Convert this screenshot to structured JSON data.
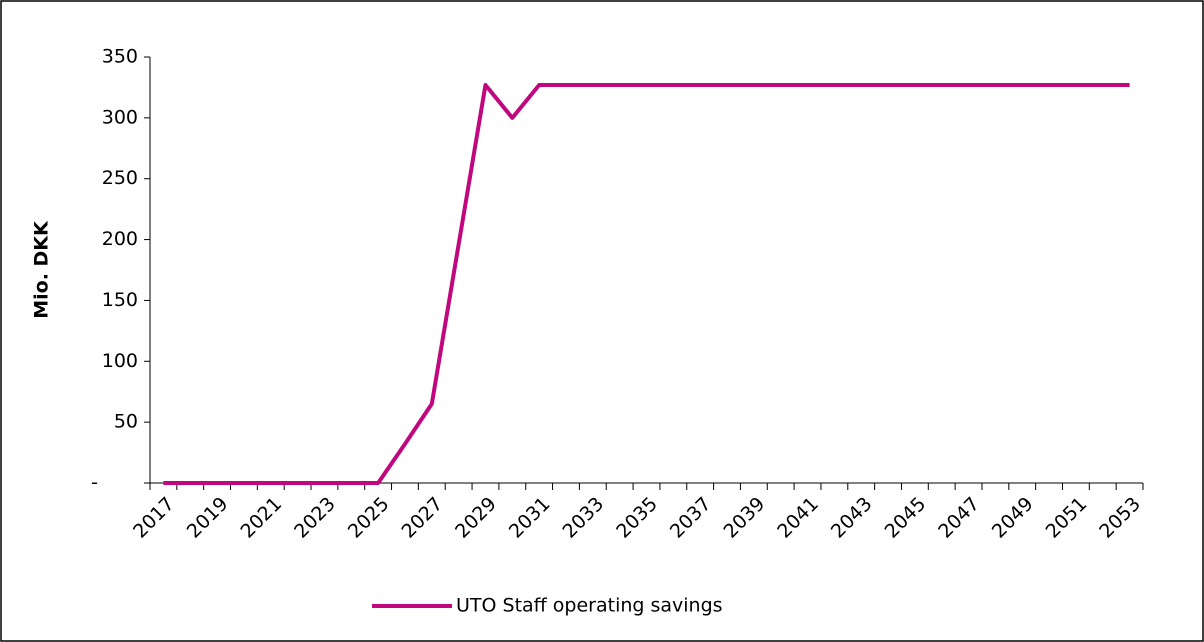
{
  "chart_data": {
    "type": "line",
    "y_label": "Mio. DKK",
    "categories": [
      "2017",
      null,
      "2019",
      null,
      "2021",
      null,
      "2023",
      null,
      "2025",
      null,
      "2027",
      null,
      "2029",
      null,
      "2031",
      null,
      "2033",
      null,
      "2035",
      null,
      "2037",
      null,
      "2039",
      null,
      "2041",
      null,
      "2043",
      null,
      "2045",
      null,
      "2047",
      null,
      "2049",
      null,
      "2051",
      null,
      "2053"
    ],
    "series": [
      {
        "name": "UTO Staff operating savings",
        "color": "#c0077d",
        "values": [
          0,
          0,
          0,
          0,
          0,
          0,
          0,
          0,
          0,
          32,
          65,
          196,
          327,
          300,
          327,
          327,
          327,
          327,
          327,
          327,
          327,
          327,
          327,
          327,
          327,
          327,
          327,
          327,
          327,
          327,
          327,
          327,
          327,
          327,
          327,
          327,
          327
        ]
      }
    ],
    "ylim": [
      0,
      350
    ],
    "yticks": [
      {
        "value": 0,
        "label": "-"
      },
      50,
      100,
      150,
      200,
      250,
      300,
      350
    ],
    "grid": false,
    "legend": "bottom"
  }
}
